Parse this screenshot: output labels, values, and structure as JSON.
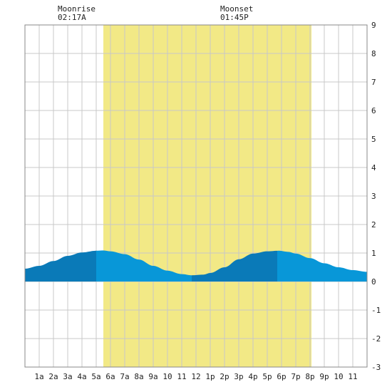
{
  "moonrise": {
    "label": "Moonrise",
    "time": "02:17A"
  },
  "moonset": {
    "label": "Moonset",
    "time": "01:45P"
  },
  "chart_data": {
    "type": "area",
    "title": "",
    "xlabel": "",
    "ylabel": "",
    "xlim": [
      0,
      24
    ],
    "ylim": [
      -3,
      9
    ],
    "grid": true,
    "x_tick_labels": [
      "1a",
      "2a",
      "3a",
      "4a",
      "5a",
      "6a",
      "7a",
      "8a",
      "9a",
      "10",
      "11",
      "12",
      "1p",
      "2p",
      "3p",
      "4p",
      "5p",
      "6p",
      "7p",
      "8p",
      "9p",
      "10",
      "11"
    ],
    "y_ticks": [
      -3,
      -2,
      -1,
      0,
      1,
      2,
      3,
      4,
      5,
      6,
      7,
      8,
      9
    ],
    "daylight": {
      "start_hour": 5.5,
      "end_hour": 20.1
    },
    "series": [
      {
        "x": [
          0,
          1,
          2,
          3,
          4,
          5,
          5.5,
          6,
          7,
          8,
          9,
          10,
          11,
          11.7,
          12.5,
          13,
          14,
          15,
          16,
          17,
          17.8,
          18.5,
          19,
          20,
          21,
          22,
          23,
          24
        ],
        "values": [
          0.45,
          0.55,
          0.72,
          0.9,
          1.02,
          1.08,
          1.09,
          1.06,
          0.96,
          0.77,
          0.55,
          0.38,
          0.26,
          0.22,
          0.24,
          0.3,
          0.5,
          0.78,
          0.98,
          1.06,
          1.08,
          1.04,
          0.98,
          0.82,
          0.64,
          0.5,
          0.4,
          0.34
        ]
      }
    ],
    "colors": {
      "daylight": "#f2e986",
      "tide_day": "#0897d8",
      "tide_night": "#0a7ab8",
      "grid": "#c8c8c8",
      "axis": "#888888"
    }
  }
}
